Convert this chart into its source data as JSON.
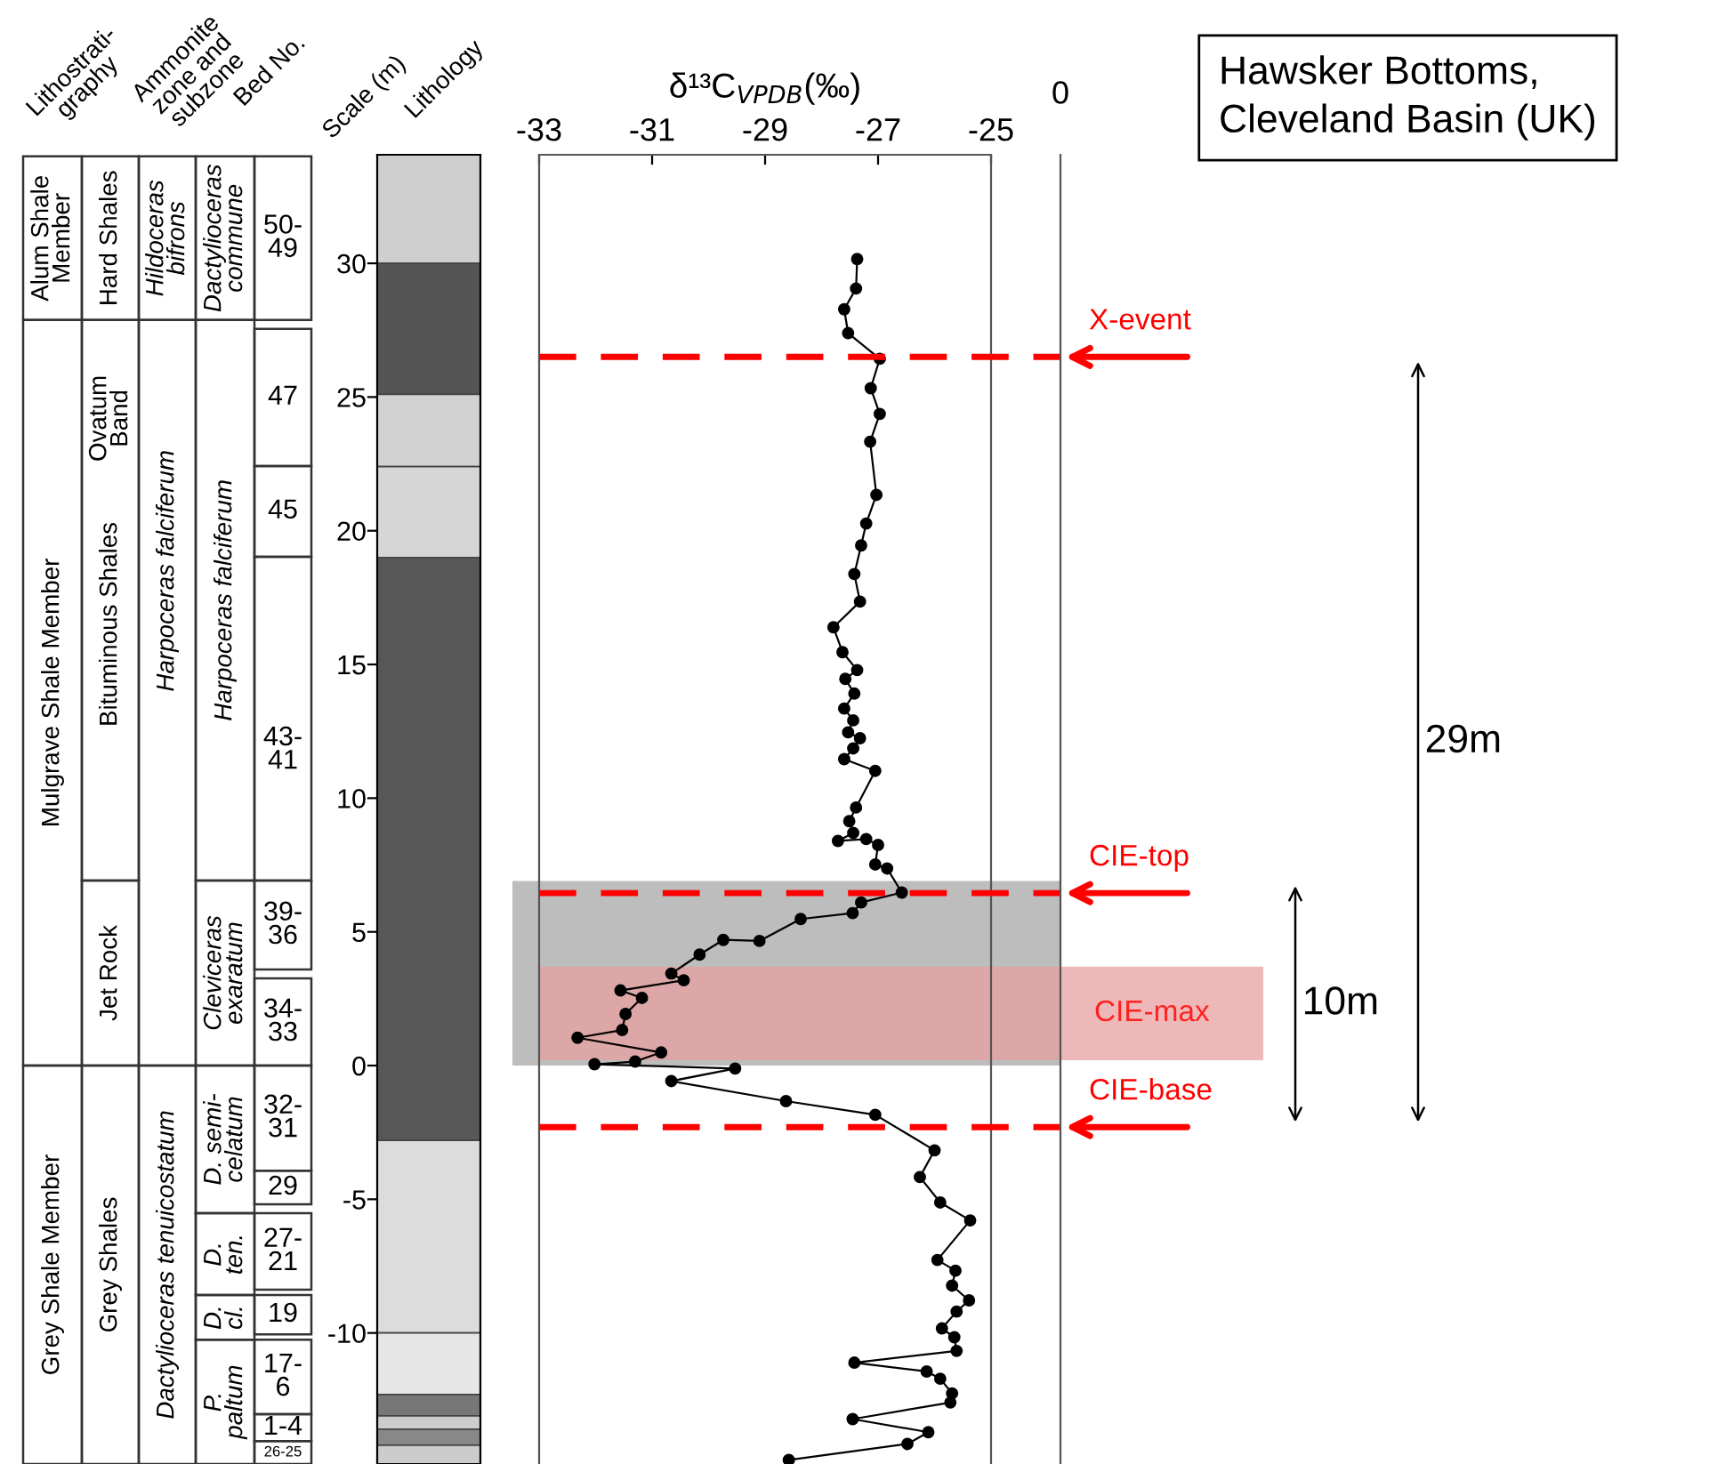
{
  "chart_data": {
    "type": "line",
    "title": "Hawsker Bottoms,\nCleveland Basin (UK)",
    "xlabel": "δ¹³C$_{VPDB}$(‰)",
    "ylabel": "Scale (m)",
    "xlim": [
      -33,
      -25
    ],
    "xticks": [
      -33,
      -31,
      -29,
      -27,
      -25
    ],
    "ylim": [
      -14.9,
      34.06
    ],
    "yticks": [
      -10,
      -5,
      0,
      5,
      10,
      15,
      20,
      25,
      30
    ],
    "grid": false,
    "marker": "circle",
    "line_style": "solid",
    "series": [
      {
        "color": "#000000",
        "x": [
          -27.37,
          -27.39,
          -27.6,
          -27.53,
          -26.97,
          -27.13,
          -26.97,
          -27.14,
          -27.03,
          -27.21,
          -27.3,
          -27.42,
          -27.32,
          -27.79,
          -27.63,
          -27.37,
          -27.58,
          -27.42,
          -27.6,
          -27.44,
          -27.53,
          -27.32,
          -27.44,
          -27.6,
          -27.05,
          -27.39,
          -27.51,
          -27.44,
          -27.71,
          -27.21,
          -27.0,
          -27.05,
          -26.84,
          -26.58,
          -27.3,
          -27.45,
          -28.37,
          -29.1,
          -29.74,
          -30.16,
          -30.66,
          -30.44,
          -31.56,
          -31.18,
          -31.47,
          -31.53,
          -32.32,
          -30.84,
          -31.3,
          -32.02,
          -29.53,
          -30.66,
          -28.63,
          -27.05,
          -26.0,
          -26.26,
          -25.9,
          -25.37,
          -25.95,
          -25.63,
          -25.69,
          -25.39,
          -25.61,
          -25.87,
          -25.65,
          -25.61,
          -27.42,
          -26.14,
          -25.9,
          -25.69,
          -25.72,
          -27.45,
          -26.11,
          -26.48,
          -28.58
        ],
        "values": [
          30.16,
          29.06,
          28.28,
          27.39,
          26.43,
          25.33,
          24.37,
          23.33,
          21.34,
          20.27,
          19.45,
          18.38,
          17.35,
          16.39,
          15.46,
          14.79,
          14.46,
          13.91,
          13.35,
          12.91,
          12.46,
          12.24,
          11.86,
          11.46,
          11.02,
          9.65,
          9.14,
          8.7,
          8.4,
          8.47,
          8.25,
          7.52,
          7.37,
          6.47,
          6.1,
          5.7,
          5.48,
          4.66,
          4.7,
          4.15,
          3.44,
          3.19,
          2.81,
          2.53,
          1.93,
          1.33,
          1.04,
          0.49,
          0.15,
          0.05,
          -0.11,
          -0.58,
          -1.33,
          -1.84,
          -3.17,
          -4.17,
          -5.12,
          -5.79,
          -7.27,
          -7.67,
          -8.23,
          -8.78,
          -9.2,
          -9.83,
          -10.16,
          -10.67,
          -11.11,
          -11.44,
          -11.71,
          -12.26,
          -12.6,
          -13.22,
          -13.71,
          -14.15,
          -14.75
        ]
      }
    ],
    "ref_lines": [
      {
        "axis": "y",
        "value": 26.5,
        "label": "X-event",
        "color": "#ff0000",
        "line_style": "dashed"
      },
      {
        "axis": "y",
        "value": 6.45,
        "label": "CIE-top",
        "color": "#ff0000",
        "line_style": "dashed"
      },
      {
        "axis": "y",
        "value": -2.3,
        "label": "CIE-base",
        "color": "#ff0000",
        "line_style": "dashed"
      }
    ],
    "bands": [
      {
        "axis": "y",
        "from": 0,
        "to": 6.9,
        "color": "#bdbdbd"
      },
      {
        "axis": "y",
        "from": 0.2,
        "to": 3.7,
        "label": "CIE-max",
        "color": "#e8a0a0"
      }
    ],
    "annotations": [
      "Lithostrati-\ngraphy",
      "Ammonite\nzone and\nsubzone",
      "Bed No.",
      "Lithology",
      "Alum Shale\nMember",
      "Mulgrave Shale Member",
      "Grey Shale Member",
      "Hard Shales",
      "Ovatum\nBand",
      "Bituminous Shales",
      "Jet Rock",
      "Grey Shales",
      "Hildoceras\nbifrons",
      "Harpoceras falciferum",
      "Dactylioceras tenuicostatum",
      "Dactylioceras\ncommune",
      "Harpoceras falciferum",
      "Cleviceras\nexaratum",
      "D. semi-\ncelatum",
      "D.\nten.",
      "D.\ncl.",
      "P.\npaltum",
      "50-\n49",
      "47",
      "45",
      "43-\n41",
      "39-\n36",
      "34-\n33",
      "32-\n31",
      "29",
      "27-\n21",
      "19",
      "17-\n6",
      "1-4",
      "26-25",
      "29m",
      "10m",
      "0"
    ]
  }
}
